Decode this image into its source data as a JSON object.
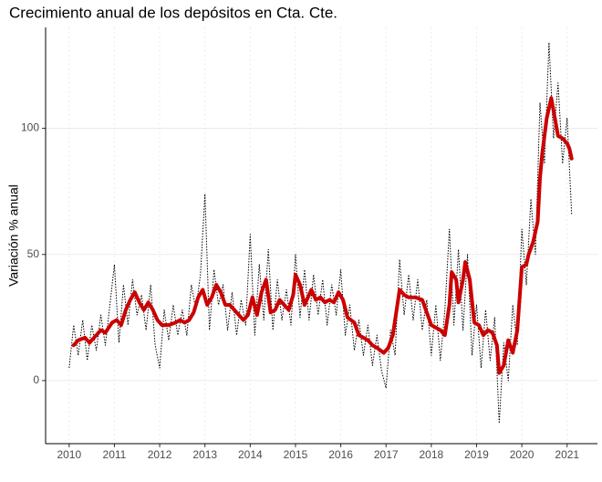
{
  "chart_data": {
    "type": "line",
    "title": "Crecimiento anual de los depósitos en Cta. Cte.",
    "y_label": "Variación % anual",
    "xlim": [
      2009.48,
      2021.67
    ],
    "xticks": [
      2010,
      2011,
      2012,
      2013,
      2014,
      2015,
      2016,
      2017,
      2018,
      2019,
      2020,
      2021
    ],
    "ylim": [
      -25,
      140
    ],
    "yticks": [
      0,
      50,
      100
    ],
    "grid": true,
    "series": [
      {
        "color": "#000000",
        "line_style": "dotted",
        "x": [
          2010.0,
          2010.1,
          2010.2,
          2010.3,
          2010.4,
          2010.5,
          2010.6,
          2010.7,
          2010.8,
          2010.9,
          2011.0,
          2011.1,
          2011.2,
          2011.3,
          2011.4,
          2011.5,
          2011.6,
          2011.7,
          2011.8,
          2011.9,
          2012.0,
          2012.1,
          2012.2,
          2012.3,
          2012.4,
          2012.5,
          2012.6,
          2012.7,
          2012.8,
          2012.9,
          2013.0,
          2013.1,
          2013.2,
          2013.3,
          2013.4,
          2013.5,
          2013.6,
          2013.7,
          2013.8,
          2013.9,
          2014.0,
          2014.1,
          2014.2,
          2014.3,
          2014.4,
          2014.5,
          2014.6,
          2014.7,
          2014.8,
          2014.9,
          2015.0,
          2015.1,
          2015.2,
          2015.3,
          2015.4,
          2015.5,
          2015.6,
          2015.7,
          2015.8,
          2015.9,
          2016.0,
          2016.1,
          2016.2,
          2016.3,
          2016.4,
          2016.5,
          2016.6,
          2016.7,
          2016.8,
          2016.9,
          2017.0,
          2017.1,
          2017.2,
          2017.3,
          2017.4,
          2017.5,
          2017.6,
          2017.7,
          2017.8,
          2017.9,
          2018.0,
          2018.1,
          2018.2,
          2018.3,
          2018.4,
          2018.5,
          2018.6,
          2018.7,
          2018.8,
          2018.9,
          2019.0,
          2019.1,
          2019.2,
          2019.3,
          2019.4,
          2019.5,
          2019.6,
          2019.7,
          2019.8,
          2019.9,
          2020.0,
          2020.1,
          2020.2,
          2020.3,
          2020.4,
          2020.5,
          2020.6,
          2020.7,
          2020.8,
          2020.9,
          2021.0,
          2021.1
        ],
        "values": [
          5,
          22,
          10,
          24,
          8,
          22,
          12,
          26,
          14,
          30,
          46,
          15,
          38,
          22,
          40,
          26,
          34,
          20,
          38,
          14,
          5,
          28,
          16,
          30,
          18,
          28,
          18,
          38,
          28,
          42,
          74,
          20,
          44,
          30,
          38,
          20,
          35,
          18,
          32,
          22,
          58,
          18,
          46,
          24,
          52,
          20,
          40,
          24,
          36,
          22,
          50,
          25,
          44,
          24,
          42,
          26,
          40,
          22,
          38,
          26,
          44,
          18,
          30,
          12,
          24,
          10,
          22,
          6,
          18,
          4,
          -3,
          20,
          10,
          48,
          26,
          42,
          24,
          40,
          20,
          32,
          10,
          30,
          8,
          28,
          60,
          22,
          52,
          20,
          50,
          10,
          30,
          5,
          28,
          8,
          25,
          -17,
          15,
          0,
          30,
          14,
          60,
          38,
          72,
          50,
          110,
          86,
          134,
          96,
          118,
          86,
          104,
          66
        ]
      },
      {
        "color": "#cc0000",
        "line_style": "solid",
        "x": [
          2010.1,
          2010.2,
          2010.35,
          2010.45,
          2010.6,
          2010.7,
          2010.8,
          2010.95,
          2011.05,
          2011.15,
          2011.25,
          2011.35,
          2011.45,
          2011.55,
          2011.65,
          2011.75,
          2011.85,
          2011.95,
          2012.05,
          2012.2,
          2012.35,
          2012.45,
          2012.55,
          2012.65,
          2012.75,
          2012.85,
          2012.95,
          2013.05,
          2013.15,
          2013.25,
          2013.35,
          2013.45,
          2013.55,
          2013.65,
          2013.75,
          2013.85,
          2013.95,
          2014.05,
          2014.15,
          2014.25,
          2014.35,
          2014.45,
          2014.55,
          2014.65,
          2014.75,
          2014.85,
          2014.95,
          2015.0,
          2015.1,
          2015.2,
          2015.35,
          2015.45,
          2015.55,
          2015.65,
          2015.75,
          2015.85,
          2015.95,
          2016.05,
          2016.15,
          2016.3,
          2016.4,
          2016.5,
          2016.6,
          2016.7,
          2016.8,
          2016.95,
          2017.05,
          2017.15,
          2017.25,
          2017.3,
          2017.4,
          2017.5,
          2017.65,
          2017.8,
          2017.9,
          2018.0,
          2018.1,
          2018.2,
          2018.3,
          2018.4,
          2018.45,
          2018.55,
          2018.6,
          2018.7,
          2018.75,
          2018.85,
          2018.95,
          2019.05,
          2019.15,
          2019.25,
          2019.35,
          2019.45,
          2019.5,
          2019.6,
          2019.7,
          2019.8,
          2019.9,
          2020.0,
          2020.1,
          2020.15,
          2020.25,
          2020.35,
          2020.4,
          2020.45,
          2020.55,
          2020.65,
          2020.7,
          2020.8,
          2020.9,
          2021.0,
          2021.05,
          2021.1
        ],
        "values": [
          14,
          16,
          17,
          15,
          18,
          20,
          19,
          23,
          24,
          22,
          28,
          32,
          35,
          31,
          28,
          31,
          28,
          24,
          22,
          22,
          23,
          24,
          23,
          24,
          27,
          33,
          36,
          30,
          33,
          38,
          35,
          30,
          30,
          28,
          26,
          24,
          26,
          33,
          26,
          35,
          40,
          27,
          28,
          32,
          30,
          28,
          34,
          42,
          38,
          30,
          36,
          32,
          33,
          31,
          32,
          31,
          35,
          32,
          25,
          23,
          18,
          17,
          16,
          14,
          13,
          11,
          13,
          18,
          30,
          36,
          34,
          33,
          33,
          32,
          27,
          22,
          21,
          20,
          18,
          30,
          43,
          40,
          31,
          40,
          47,
          40,
          23,
          22,
          18,
          20,
          19,
          14,
          3,
          6,
          16,
          11,
          20,
          45,
          46,
          50,
          55,
          63,
          80,
          90,
          104,
          112,
          107,
          97,
          96,
          94,
          92,
          88
        ]
      }
    ]
  }
}
